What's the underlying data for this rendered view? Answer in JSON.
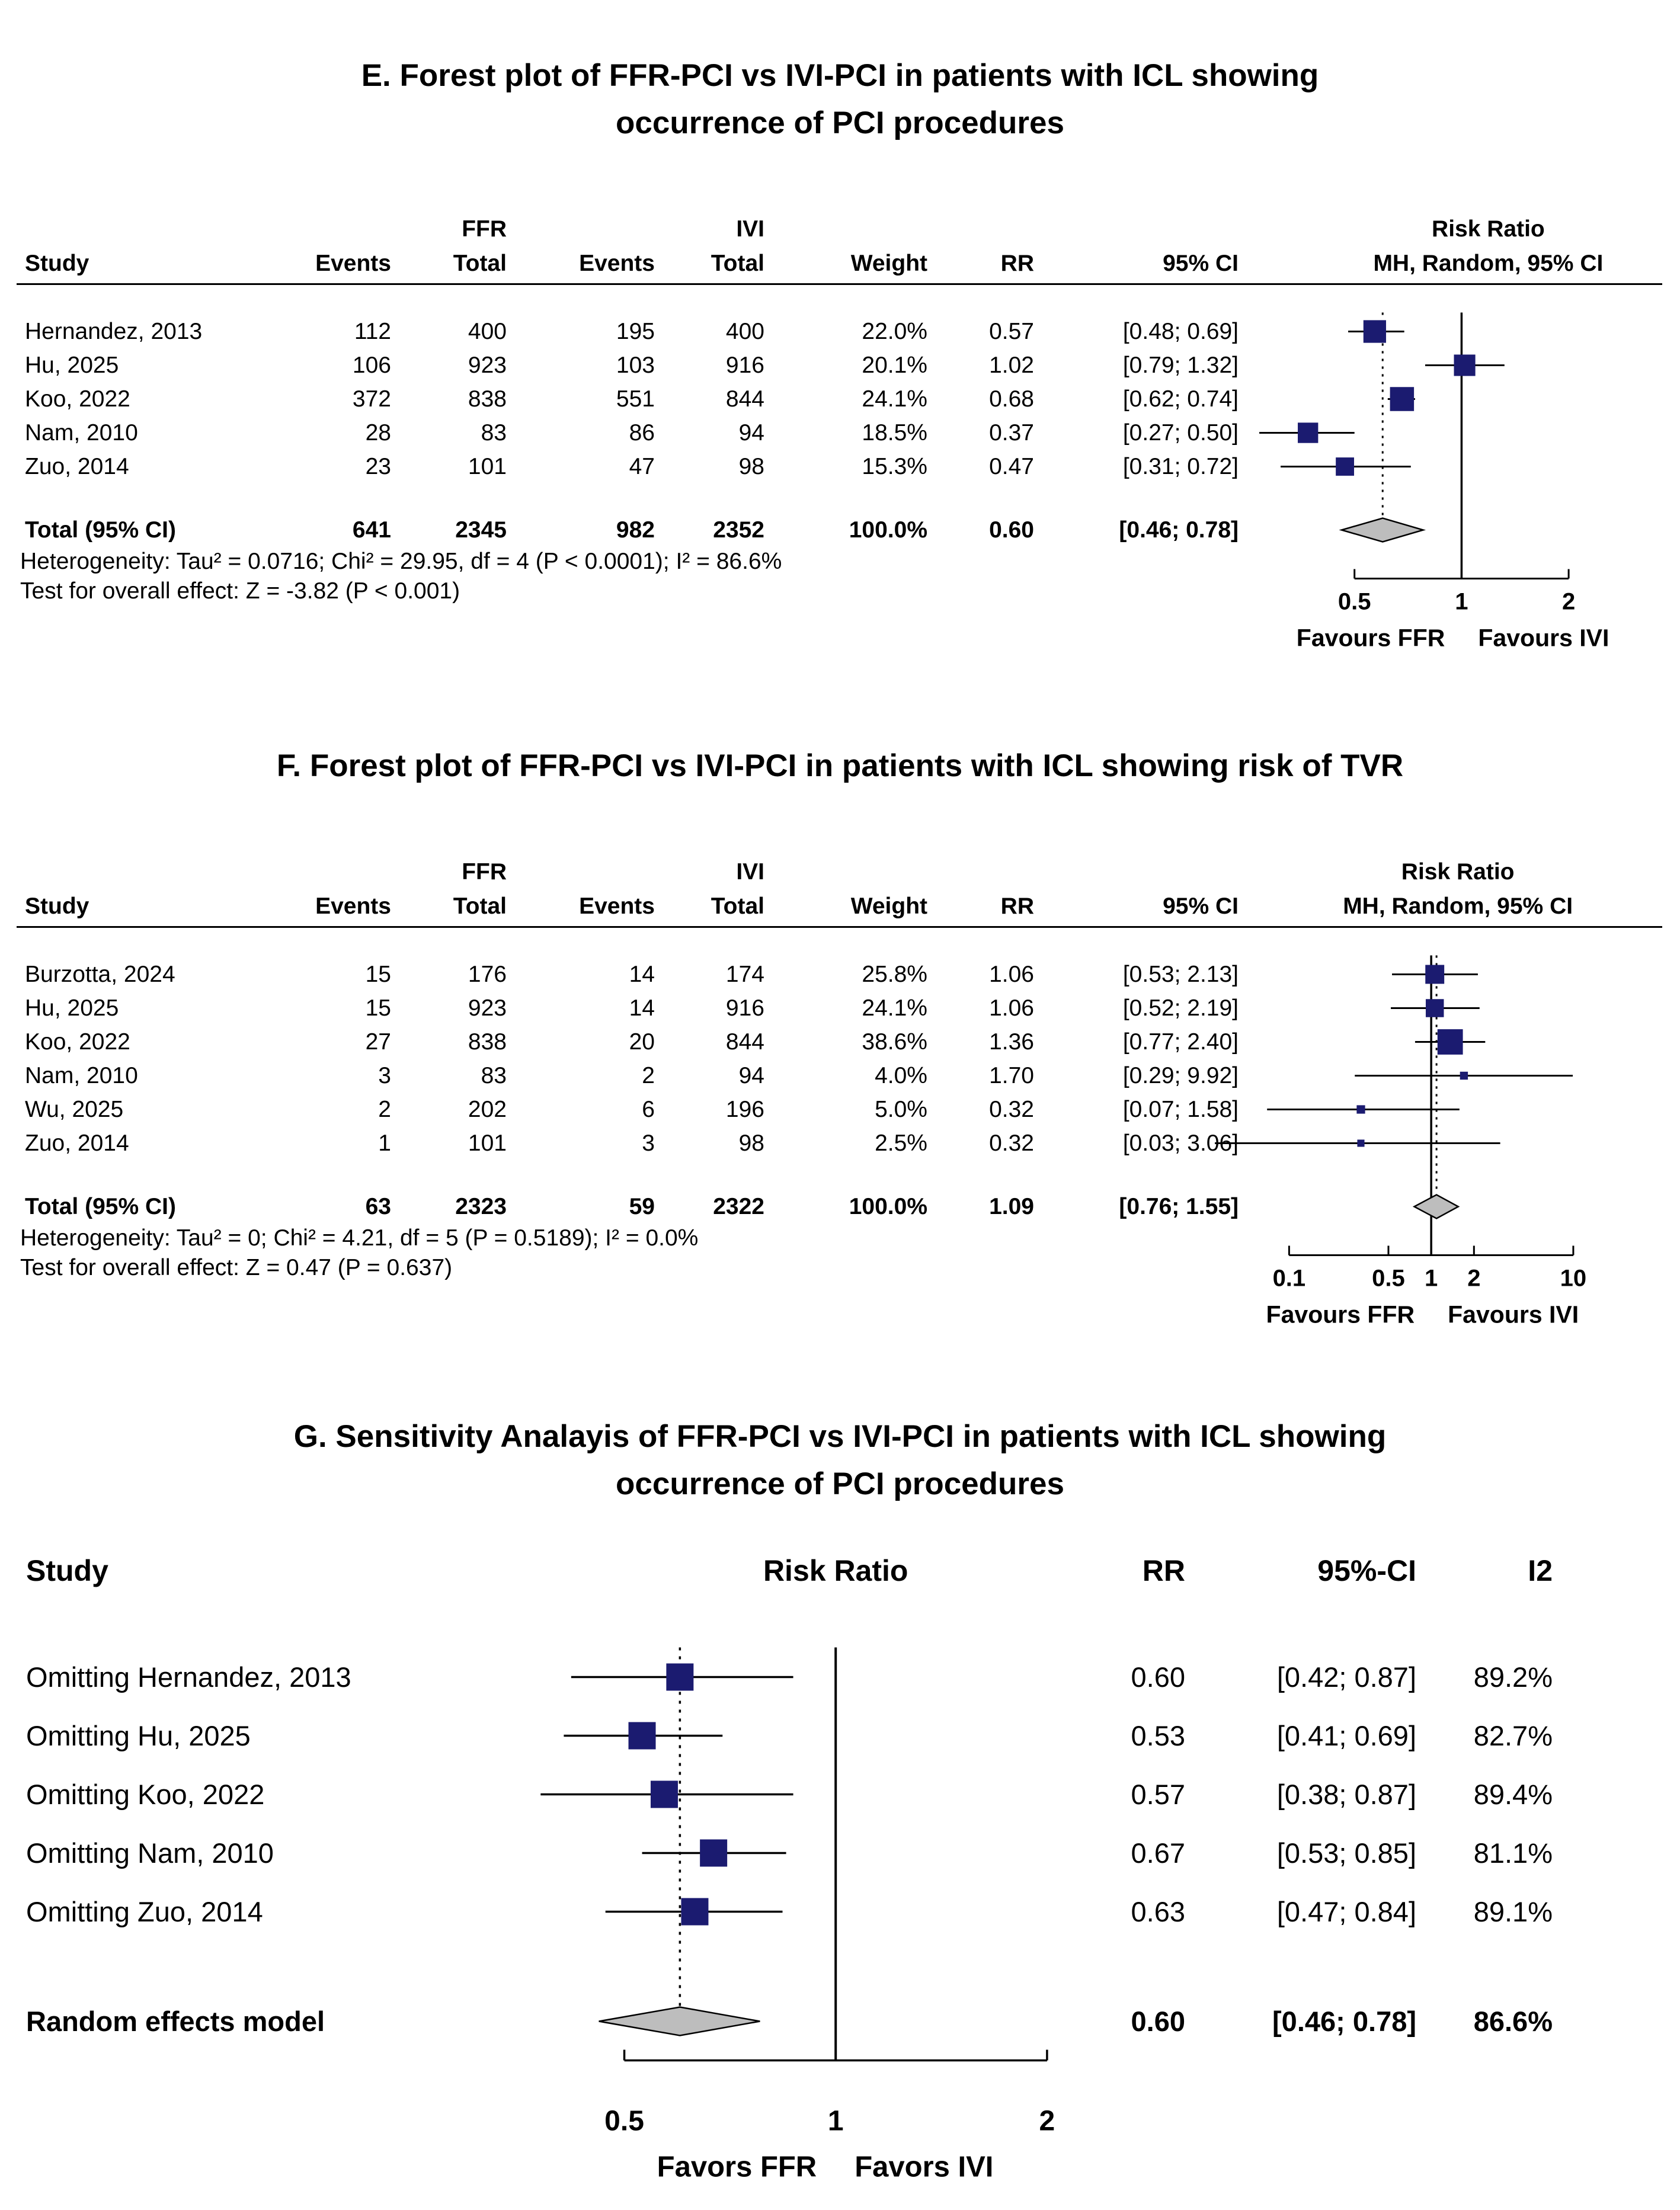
{
  "colors": {
    "marker": "#1b1b70",
    "diamond_fill": "#bdbdbd",
    "line": "#000000",
    "background": "#ffffff"
  },
  "chart_data": [
    {
      "type": "forest",
      "panel_label": "E",
      "title_lines": [
        "E. Forest plot of FFR-PCI vs IVI-PCI in patients with ICL showing",
        "occurrence of PCI procedures"
      ],
      "columns": {
        "study": "Study",
        "events": "Events",
        "total": "Total",
        "weight": "Weight",
        "rr": "RR",
        "ci": "95% CI",
        "model": "MH, Random, 95% CI",
        "group1": "FFR",
        "group2": "IVI",
        "risk_ratio": "Risk Ratio"
      },
      "studies": [
        {
          "name": "Hernandez, 2013",
          "events_ffr": "112",
          "total_ffr": "400",
          "events_ivi": "195",
          "total_ivi": "400",
          "weight": "22.0%",
          "weight_val": 22.0,
          "rr": "0.57",
          "rr_val": 0.57,
          "ci": "[0.48; 0.69]",
          "ci_lo": 0.48,
          "ci_hi": 0.69
        },
        {
          "name": "Hu, 2025",
          "events_ffr": "106",
          "total_ffr": "923",
          "events_ivi": "103",
          "total_ivi": "916",
          "weight": "20.1%",
          "weight_val": 20.1,
          "rr": "1.02",
          "rr_val": 1.02,
          "ci": "[0.79; 1.32]",
          "ci_lo": 0.79,
          "ci_hi": 1.32
        },
        {
          "name": "Koo, 2022",
          "events_ffr": "372",
          "total_ffr": "838",
          "events_ivi": "551",
          "total_ivi": "844",
          "weight": "24.1%",
          "weight_val": 24.1,
          "rr": "0.68",
          "rr_val": 0.68,
          "ci": "[0.62; 0.74]",
          "ci_lo": 0.62,
          "ci_hi": 0.74
        },
        {
          "name": "Nam, 2010",
          "events_ffr": "28",
          "total_ffr": "83",
          "events_ivi": "86",
          "total_ivi": "94",
          "weight": "18.5%",
          "weight_val": 18.5,
          "rr": "0.37",
          "rr_val": 0.37,
          "ci": "[0.27; 0.50]",
          "ci_lo": 0.27,
          "ci_hi": 0.5
        },
        {
          "name": "Zuo, 2014",
          "events_ffr": "23",
          "total_ffr": "101",
          "events_ivi": "47",
          "total_ivi": "98",
          "weight": "15.3%",
          "weight_val": 15.3,
          "rr": "0.47",
          "rr_val": 0.47,
          "ci": "[0.31; 0.72]",
          "ci_lo": 0.31,
          "ci_hi": 0.72
        }
      ],
      "total": {
        "name": "Total (95% CI)",
        "events_ffr": "641",
        "total_ffr": "2345",
        "events_ivi": "982",
        "total_ivi": "2352",
        "weight": "100.0%",
        "rr": "0.60",
        "rr_val": 0.6,
        "ci": "[0.46; 0.78]",
        "ci_lo": 0.46,
        "ci_hi": 0.78
      },
      "heterogeneity": "Heterogeneity: Tau² = 0.0716; Chi² = 29.95, df = 4 (P < 0.0001); I² = 86.6%",
      "overall_effect": "Test for overall effect: Z = -3.82 (P < 0.001)",
      "axis": {
        "scale": "log",
        "ticks": [
          0.5,
          1,
          2
        ],
        "tick_labels": [
          "0.5",
          "1",
          "2"
        ],
        "min": 0.25,
        "max": 2.45
      },
      "favours": [
        "Favours FFR",
        "Favours IVI"
      ]
    },
    {
      "type": "forest",
      "panel_label": "F",
      "title_lines": [
        "F. Forest plot of FFR-PCI vs IVI-PCI in patients with ICL showing risk of TVR"
      ],
      "columns": {
        "study": "Study",
        "events": "Events",
        "total": "Total",
        "weight": "Weight",
        "rr": "RR",
        "ci": "95% CI",
        "model": "MH, Random, 95% CI",
        "group1": "FFR",
        "group2": "IVI",
        "risk_ratio": "Risk Ratio"
      },
      "studies": [
        {
          "name": "Burzotta, 2024",
          "events_ffr": "15",
          "total_ffr": "176",
          "events_ivi": "14",
          "total_ivi": "174",
          "weight": "25.8%",
          "weight_val": 25.8,
          "rr": "1.06",
          "rr_val": 1.06,
          "ci": "[0.53; 2.13]",
          "ci_lo": 0.53,
          "ci_hi": 2.13
        },
        {
          "name": "Hu, 2025",
          "events_ffr": "15",
          "total_ffr": "923",
          "events_ivi": "14",
          "total_ivi": "916",
          "weight": "24.1%",
          "weight_val": 24.1,
          "rr": "1.06",
          "rr_val": 1.06,
          "ci": "[0.52; 2.19]",
          "ci_lo": 0.52,
          "ci_hi": 2.19
        },
        {
          "name": "Koo, 2022",
          "events_ffr": "27",
          "total_ffr": "838",
          "events_ivi": "20",
          "total_ivi": "844",
          "weight": "38.6%",
          "weight_val": 38.6,
          "rr": "1.36",
          "rr_val": 1.36,
          "ci": "[0.77; 2.40]",
          "ci_lo": 0.77,
          "ci_hi": 2.4
        },
        {
          "name": "Nam, 2010",
          "events_ffr": "3",
          "total_ffr": "83",
          "events_ivi": "2",
          "total_ivi": "94",
          "weight": "4.0%",
          "weight_val": 4.0,
          "rr": "1.70",
          "rr_val": 1.7,
          "ci": "[0.29; 9.92]",
          "ci_lo": 0.29,
          "ci_hi": 9.92
        },
        {
          "name": "Wu, 2025",
          "events_ffr": "2",
          "total_ffr": "202",
          "events_ivi": "6",
          "total_ivi": "196",
          "weight": "5.0%",
          "weight_val": 5.0,
          "rr": "0.32",
          "rr_val": 0.32,
          "ci": "[0.07; 1.58]",
          "ci_lo": 0.07,
          "ci_hi": 1.58
        },
        {
          "name": "Zuo, 2014",
          "events_ffr": "1",
          "total_ffr": "101",
          "events_ivi": "3",
          "total_ivi": "98",
          "weight": "2.5%",
          "weight_val": 2.5,
          "rr": "0.32",
          "rr_val": 0.32,
          "ci": "[0.03; 3.06]",
          "ci_lo": 0.03,
          "ci_hi": 3.06
        }
      ],
      "total": {
        "name": "Total (95% CI)",
        "events_ffr": "63",
        "total_ffr": "2323",
        "events_ivi": "59",
        "total_ivi": "2322",
        "weight": "100.0%",
        "rr": "1.09",
        "rr_val": 1.09,
        "ci": "[0.76; 1.55]",
        "ci_lo": 0.76,
        "ci_hi": 1.55
      },
      "heterogeneity": "Heterogeneity: Tau² = 0; Chi² = 4.21, df = 5 (P = 0.5189); I² = 0.0%",
      "overall_effect": "Test for overall effect: Z = 0.47 (P = 0.637)",
      "axis": {
        "scale": "log",
        "ticks": [
          0.1,
          0.5,
          1,
          2,
          10
        ],
        "tick_labels": [
          "0.1",
          "0.5",
          "1",
          "2",
          "10"
        ],
        "min": 0.03,
        "max": 10.5
      },
      "favours": [
        "Favours FFR",
        "Favours IVI"
      ]
    },
    {
      "type": "forest-sensitivity",
      "panel_label": "G",
      "title_lines": [
        "G. Sensitivity Analayis of FFR-PCI vs IVI-PCI in patients with ICL showing",
        "occurrence of PCI procedures"
      ],
      "columns": {
        "study": "Study",
        "risk_ratio": "Risk Ratio",
        "rr": "RR",
        "ci": "95%-CI",
        "i2": "I2"
      },
      "studies": [
        {
          "name": "Omitting Hernandez, 2013",
          "rr": "0.60",
          "rr_val": 0.6,
          "ci": "[0.42; 0.87]",
          "ci_lo": 0.42,
          "ci_hi": 0.87,
          "i2": "89.2%"
        },
        {
          "name": "Omitting Hu, 2025",
          "rr": "0.53",
          "rr_val": 0.53,
          "ci": "[0.41; 0.69]",
          "ci_lo": 0.41,
          "ci_hi": 0.69,
          "i2": "82.7%"
        },
        {
          "name": "Omitting Koo, 2022",
          "rr": "0.57",
          "rr_val": 0.57,
          "ci": "[0.38; 0.87]",
          "ci_lo": 0.38,
          "ci_hi": 0.87,
          "i2": "89.4%"
        },
        {
          "name": "Omitting Nam, 2010",
          "rr": "0.67",
          "rr_val": 0.67,
          "ci": "[0.53; 0.85]",
          "ci_lo": 0.53,
          "ci_hi": 0.85,
          "i2": "81.1%"
        },
        {
          "name": "Omitting Zuo, 2014",
          "rr": "0.63",
          "rr_val": 0.63,
          "ci": "[0.47; 0.84]",
          "ci_lo": 0.47,
          "ci_hi": 0.84,
          "i2": "89.1%"
        }
      ],
      "total": {
        "name": "Random effects model",
        "rr": "0.60",
        "rr_val": 0.6,
        "ci": "[0.46; 0.78]",
        "ci_lo": 0.46,
        "ci_hi": 0.78,
        "i2": "86.6%"
      },
      "axis": {
        "scale": "log",
        "ticks": [
          0.5,
          1,
          2
        ],
        "tick_labels": [
          "0.5",
          "1",
          "2"
        ],
        "min": 0.35,
        "max": 2.1
      },
      "favours": [
        "Favors FFR",
        "Favors IVI"
      ]
    }
  ]
}
